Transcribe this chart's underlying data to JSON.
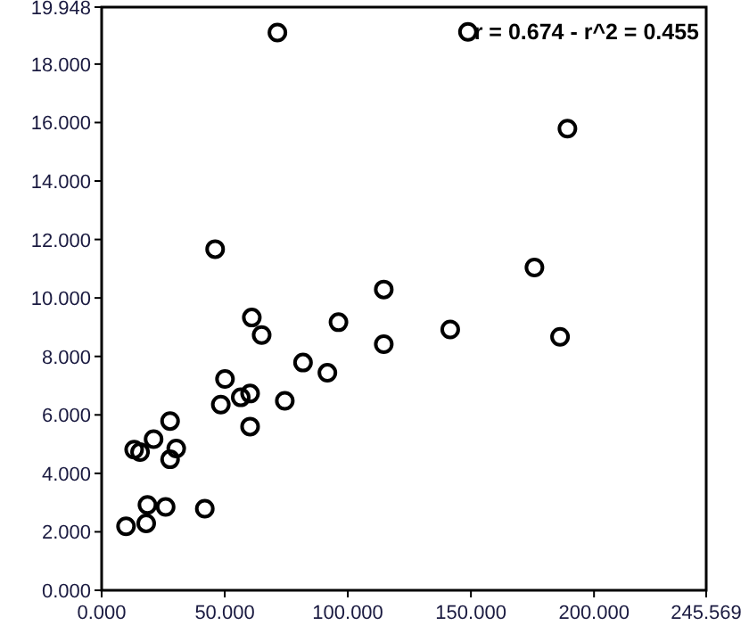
{
  "chart_data": {
    "type": "scatter",
    "marker": "circle",
    "grid": false,
    "x": [
      9.9,
      18.1,
      18.6,
      26.0,
      41.9,
      13.2,
      15.6,
      21.1,
      27.8,
      30.3,
      27.8,
      48.4,
      50.1,
      56.5,
      60.3,
      60.3,
      74.4,
      81.8,
      91.7,
      61.0,
      65.0,
      96.2,
      114.6,
      141.6,
      186.2,
      71.4,
      148.8,
      189.2,
      46.1,
      175.8,
      114.6
    ],
    "values": [
      2.19,
      2.29,
      2.92,
      2.85,
      2.79,
      4.81,
      4.73,
      5.17,
      4.48,
      4.85,
      5.79,
      6.35,
      7.23,
      6.6,
      6.73,
      5.6,
      6.48,
      7.79,
      7.44,
      9.33,
      8.73,
      9.17,
      8.42,
      8.92,
      8.67,
      19.08,
      19.1,
      15.79,
      11.67,
      11.04,
      10.29
    ],
    "color": "#000000",
    "xlim": [
      0,
      245.569
    ],
    "ylim": [
      0,
      19.948
    ],
    "xticks": [
      {
        "value": 0,
        "label": "0.000"
      },
      {
        "value": 50,
        "label": "50.000"
      },
      {
        "value": 100,
        "label": "100.000"
      },
      {
        "value": 150,
        "label": "150.000"
      },
      {
        "value": 200,
        "label": "200.000"
      },
      {
        "value": 245.569,
        "label": "245.569"
      }
    ],
    "yticks": [
      {
        "value": 0,
        "label": "0.000"
      },
      {
        "value": 2,
        "label": "2.000"
      },
      {
        "value": 4,
        "label": "4.000"
      },
      {
        "value": 6,
        "label": "6.000"
      },
      {
        "value": 8,
        "label": "8.000"
      },
      {
        "value": 10,
        "label": "10.000"
      },
      {
        "value": 12,
        "label": "12.000"
      },
      {
        "value": 14,
        "label": "14.000"
      },
      {
        "value": 16,
        "label": "16.000"
      },
      {
        "value": 18,
        "label": "18.000"
      },
      {
        "value": 19.948,
        "label": "19.948"
      }
    ],
    "annotations": [
      "r = 0.674 - r^2 = 0.455"
    ]
  }
}
